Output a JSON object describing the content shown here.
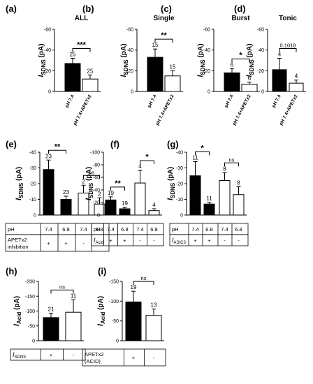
{
  "chart_data": [
    {
      "type": "bar",
      "panel": "(a)",
      "title": "ALL",
      "ylabel": "I",
      "ylabel_sub": "SDNS",
      "ylabel_unit": " (pA)",
      "ylim": [
        0,
        -60
      ],
      "ticks": [
        0,
        -20,
        -40,
        -60
      ],
      "categories": [
        "pH 7.4",
        "pH 7.4+APETx2"
      ],
      "values": [
        -27,
        -12
      ],
      "errors": [
        5,
        4
      ],
      "n": [
        "25",
        "25"
      ],
      "fills": [
        "#000000",
        "#ffffff"
      ],
      "significance": [
        {
          "a": 0,
          "b": 1,
          "label": "***"
        }
      ]
    },
    {
      "type": "bar",
      "panel": "(b)",
      "title": "Single",
      "ylabel": "I",
      "ylabel_sub": "SDNS",
      "ylabel_unit": " (pA)",
      "ylim": [
        0,
        -60
      ],
      "ticks": [
        0,
        -20,
        -40,
        -60
      ],
      "categories": [
        "pH 7.4",
        "pH 7.4+APETx2"
      ],
      "values": [
        -33,
        -15
      ],
      "errors": [
        8,
        5
      ],
      "n": [
        "15",
        "15"
      ],
      "fills": [
        "#000000",
        "#ffffff"
      ],
      "significance": [
        {
          "a": 0,
          "b": 1,
          "label": "**"
        }
      ]
    },
    {
      "type": "bar",
      "panel": "(c)",
      "title": "Burst",
      "ylabel": "I",
      "ylabel_sub": "SDNS",
      "ylabel_unit": " (pA)",
      "ylim": [
        0,
        -60
      ],
      "ticks": [
        0,
        -20,
        -40,
        -60
      ],
      "categories": [
        "pH 7.4",
        "pH 7.4+APETx2"
      ],
      "values": [
        -18,
        -7
      ],
      "errors": [
        4,
        2
      ],
      "n": [
        "6",
        "6"
      ],
      "fills": [
        "#000000",
        "#ffffff"
      ],
      "significance": [
        {
          "a": 0,
          "b": 1,
          "label": "*"
        }
      ]
    },
    {
      "type": "bar",
      "panel": "(d)",
      "title": "Tonic",
      "ylabel": "I",
      "ylabel_sub": "SDNS",
      "ylabel_unit": " (pA)",
      "ylim": [
        0,
        -60
      ],
      "ticks": [
        0,
        -20,
        -40,
        -60
      ],
      "categories": [
        "pH 7.4",
        "pH 7.4+APETx2"
      ],
      "values": [
        -21,
        -8
      ],
      "errors": [
        11,
        3
      ],
      "n": [
        "4",
        "4"
      ],
      "fills": [
        "#000000",
        "#ffffff"
      ],
      "significance": [
        {
          "a": 0,
          "b": 1,
          "label": "0.1018"
        }
      ]
    },
    {
      "type": "bar",
      "panel": "(e)",
      "title": "",
      "ylabel": "I",
      "ylabel_sub": "SDNS",
      "ylabel_unit": " (pA)",
      "ylim": [
        0,
        -40
      ],
      "ticks": [
        0,
        -10,
        -20,
        -30,
        -40
      ],
      "categories": [
        "7.4",
        "6.8",
        "7.4",
        "6.8"
      ],
      "values": [
        -29,
        -10,
        -14,
        -7
      ],
      "errors": [
        6,
        2,
        5,
        4
      ],
      "n": [
        "23",
        "23",
        "2",
        "2"
      ],
      "fills": [
        "#000000",
        "#000000",
        "#ffffff",
        "#ffffff"
      ],
      "significance": [
        {
          "a": 0,
          "b": 1,
          "label": "**"
        },
        {
          "a": 2,
          "b": 3,
          "label": "ns"
        }
      ],
      "table": {
        "rows": [
          {
            "label": "pH",
            "values": [
              "7.4",
              "6.8",
              "7.4",
              "6.8"
            ]
          },
          {
            "label": "APETx2 inhibition",
            "label_lines": [
              "APETx2",
              "inhibition"
            ],
            "values": [
              "+",
              "+",
              "-",
              "-"
            ]
          }
        ]
      }
    },
    {
      "type": "bar",
      "panel": "(f)",
      "title": "",
      "ylabel": "I",
      "ylabel_sub": "SDNS",
      "ylabel_unit": " (pA)",
      "ylim": [
        0,
        -100
      ],
      "ticks": [
        0,
        -20,
        -40,
        -60,
        -80,
        -100
      ],
      "categories": [
        "7.4",
        "6.8",
        "7.4",
        "6.8"
      ],
      "values": [
        -24,
        -10,
        -51,
        -7
      ],
      "errors": [
        5,
        2,
        20,
        3
      ],
      "n": [
        "19",
        "19",
        "4",
        "4"
      ],
      "fills": [
        "#000000",
        "#000000",
        "#ffffff",
        "#ffffff"
      ],
      "significance": [
        {
          "a": 0,
          "b": 1,
          "label": "**"
        },
        {
          "a": 2,
          "b": 3,
          "label": "*"
        }
      ],
      "table": {
        "rows": [
          {
            "label": "pH",
            "values": [
              "7.4",
              "6.8",
              "7.4",
              "6.8"
            ]
          },
          {
            "label": "I",
            "label_sub": "Acid",
            "values": [
              "+",
              "+",
              "-",
              "-"
            ]
          }
        ]
      }
    },
    {
      "type": "bar",
      "panel": "(g)",
      "title": "",
      "ylabel": "I",
      "ylabel_sub": "SDNS",
      "ylabel_unit": " (pA)",
      "ylim": [
        0,
        -40
      ],
      "ticks": [
        0,
        -10,
        -20,
        -30,
        -40
      ],
      "categories": [
        "7.4",
        "6.8",
        "7.4",
        "6.8"
      ],
      "values": [
        -25,
        -7,
        -22,
        -13
      ],
      "errors": [
        9,
        1,
        5,
        5
      ],
      "n": [
        "11",
        "11",
        "8",
        "8"
      ],
      "fills": [
        "#000000",
        "#000000",
        "#ffffff",
        "#ffffff"
      ],
      "significance": [
        {
          "a": 0,
          "b": 1,
          "label": "*"
        },
        {
          "a": 2,
          "b": 3,
          "label": "ns"
        }
      ],
      "table": {
        "rows": [
          {
            "label": "pH",
            "values": [
              "7.4",
              "6.8",
              "7.4",
              "6.8"
            ]
          },
          {
            "label": "I",
            "label_sub": "ASIC3",
            "values": [
              "+",
              "+",
              "-",
              "-"
            ]
          }
        ]
      }
    },
    {
      "type": "bar",
      "panel": "(h)",
      "title": "",
      "ylabel": "I",
      "ylabel_sub": "Acid",
      "ylabel_unit": " (pA)",
      "ylim": [
        0,
        -200
      ],
      "ticks": [
        0,
        -50,
        -100,
        -150,
        -200
      ],
      "categories": [
        "+",
        "-"
      ],
      "values": [
        -78,
        -96
      ],
      "errors": [
        15,
        42
      ],
      "n": [
        "21",
        "11"
      ],
      "fills": [
        "#000000",
        "#ffffff"
      ],
      "significance": [
        {
          "a": 0,
          "b": 1,
          "label": "ns"
        }
      ],
      "table": {
        "rows": [
          {
            "label": "I",
            "label_sub": "SDNS",
            "values": [
              "+",
              "-"
            ]
          }
        ]
      }
    },
    {
      "type": "bar",
      "panel": "(i)",
      "title": "",
      "ylabel": "I",
      "ylabel_sub": "Acid",
      "ylabel_unit": " (pA)",
      "ylim": [
        0,
        -150
      ],
      "ticks": [
        0,
        -50,
        -100,
        -150
      ],
      "categories": [
        "+",
        "-"
      ],
      "values": [
        -98,
        -64
      ],
      "errors": [
        27,
        16
      ],
      "n": [
        "19",
        "13"
      ],
      "fills": [
        "#000000",
        "#ffffff"
      ],
      "significance": [
        {
          "a": 0,
          "b": 1,
          "label": "ns"
        }
      ],
      "table": {
        "rows": [
          {
            "label": "APETx2 (ACID)",
            "label_lines": [
              "APETx2",
              "(ACID)"
            ],
            "values": [
              "+",
              "-"
            ]
          }
        ]
      }
    }
  ]
}
